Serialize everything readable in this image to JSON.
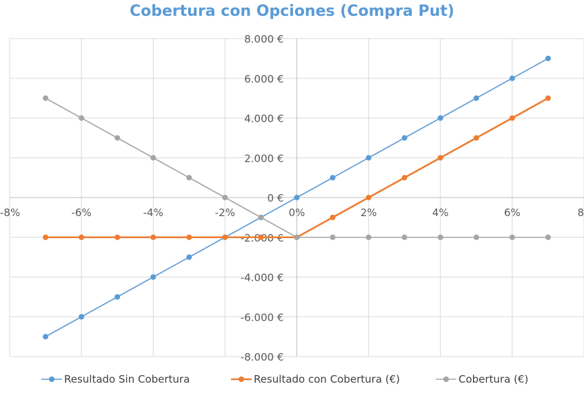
{
  "chart_data": {
    "type": "line",
    "title": "Cobertura con Opciones (Compra Put)",
    "xlabel": "",
    "ylabel": "",
    "xlim": [
      -8,
      8
    ],
    "ylim": [
      -8000,
      8000
    ],
    "x_tick_values": [
      -8,
      -6,
      -4,
      -2,
      0,
      2,
      4,
      6,
      8
    ],
    "x_tick_labels": [
      "-8%",
      "-6%",
      "-4%",
      "-2%",
      "0%",
      "2%",
      "4%",
      "6%",
      "8"
    ],
    "y_tick_values": [
      8000,
      6000,
      4000,
      2000,
      0,
      -2000,
      -4000,
      -6000,
      -8000
    ],
    "y_tick_labels": [
      "8.000 €",
      "6.000 €",
      "4.000 €",
      "2.000 €",
      "0 €",
      "-2.000 €",
      "-4.000 €",
      "-6.000 €",
      "-8.000 €"
    ],
    "negative_tick_color": "#ff0000",
    "grid": true,
    "legend_position": "bottom",
    "x": [
      -7,
      -6,
      -5,
      -4,
      -3,
      -2,
      -1,
      0,
      1,
      2,
      3,
      4,
      5,
      6,
      7
    ],
    "series": [
      {
        "name": "Resultado Sin Cobertura",
        "color": "#5b9bd5",
        "values": [
          -7000,
          -6000,
          -5000,
          -4000,
          -3000,
          -2000,
          -1000,
          0,
          1000,
          2000,
          3000,
          4000,
          5000,
          6000,
          7000
        ]
      },
      {
        "name": "Resultado con Cobertura (€)",
        "color": "#ed7d31",
        "values": [
          -2000,
          -2000,
          -2000,
          -2000,
          -2000,
          -2000,
          -2000,
          -2000,
          -1000,
          0,
          1000,
          2000,
          3000,
          4000,
          5000
        ]
      },
      {
        "name": "Cobertura (€)",
        "color": "#a5a5a5",
        "values": [
          5000,
          4000,
          3000,
          2000,
          1000,
          0,
          -1000,
          -2000,
          -2000,
          -2000,
          -2000,
          -2000,
          -2000,
          -2000,
          -2000
        ]
      }
    ]
  }
}
